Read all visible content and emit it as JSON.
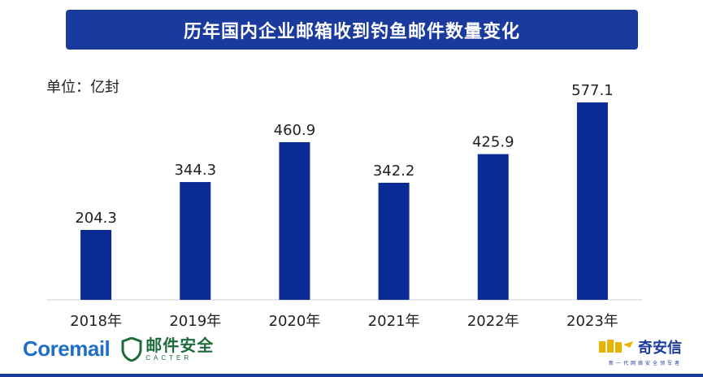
{
  "header": {
    "title": "历年国内企业邮箱收到钓鱼邮件数量变化"
  },
  "unit_label": "单位：亿封",
  "chart_data": {
    "type": "bar",
    "categories": [
      "2018年",
      "2019年",
      "2020年",
      "2021年",
      "2022年",
      "2023年"
    ],
    "values": [
      204.3,
      344.3,
      460.9,
      342.2,
      425.9,
      577.1
    ],
    "value_labels": [
      "204.3",
      "344.3",
      "460.9",
      "342.2",
      "425.9",
      "577.1"
    ],
    "ylim": [
      0,
      620
    ],
    "bar_color": "#0a2a96",
    "grid": false,
    "legend": "none"
  },
  "footer": {
    "coremail": "Coremail",
    "cacter_cn": "邮件安全",
    "cacter_en": "CACTER",
    "qax_cn": "奇安信",
    "qax_sub": "新一代网络安全领军者",
    "icons": [
      "shield-icon",
      "qax-logo-icon"
    ]
  },
  "colors": {
    "title_bg": "#1a3a9e",
    "coremail": "#1f6fc7",
    "cacter": "#1d6b3a",
    "qax": "#1a3a9e"
  }
}
